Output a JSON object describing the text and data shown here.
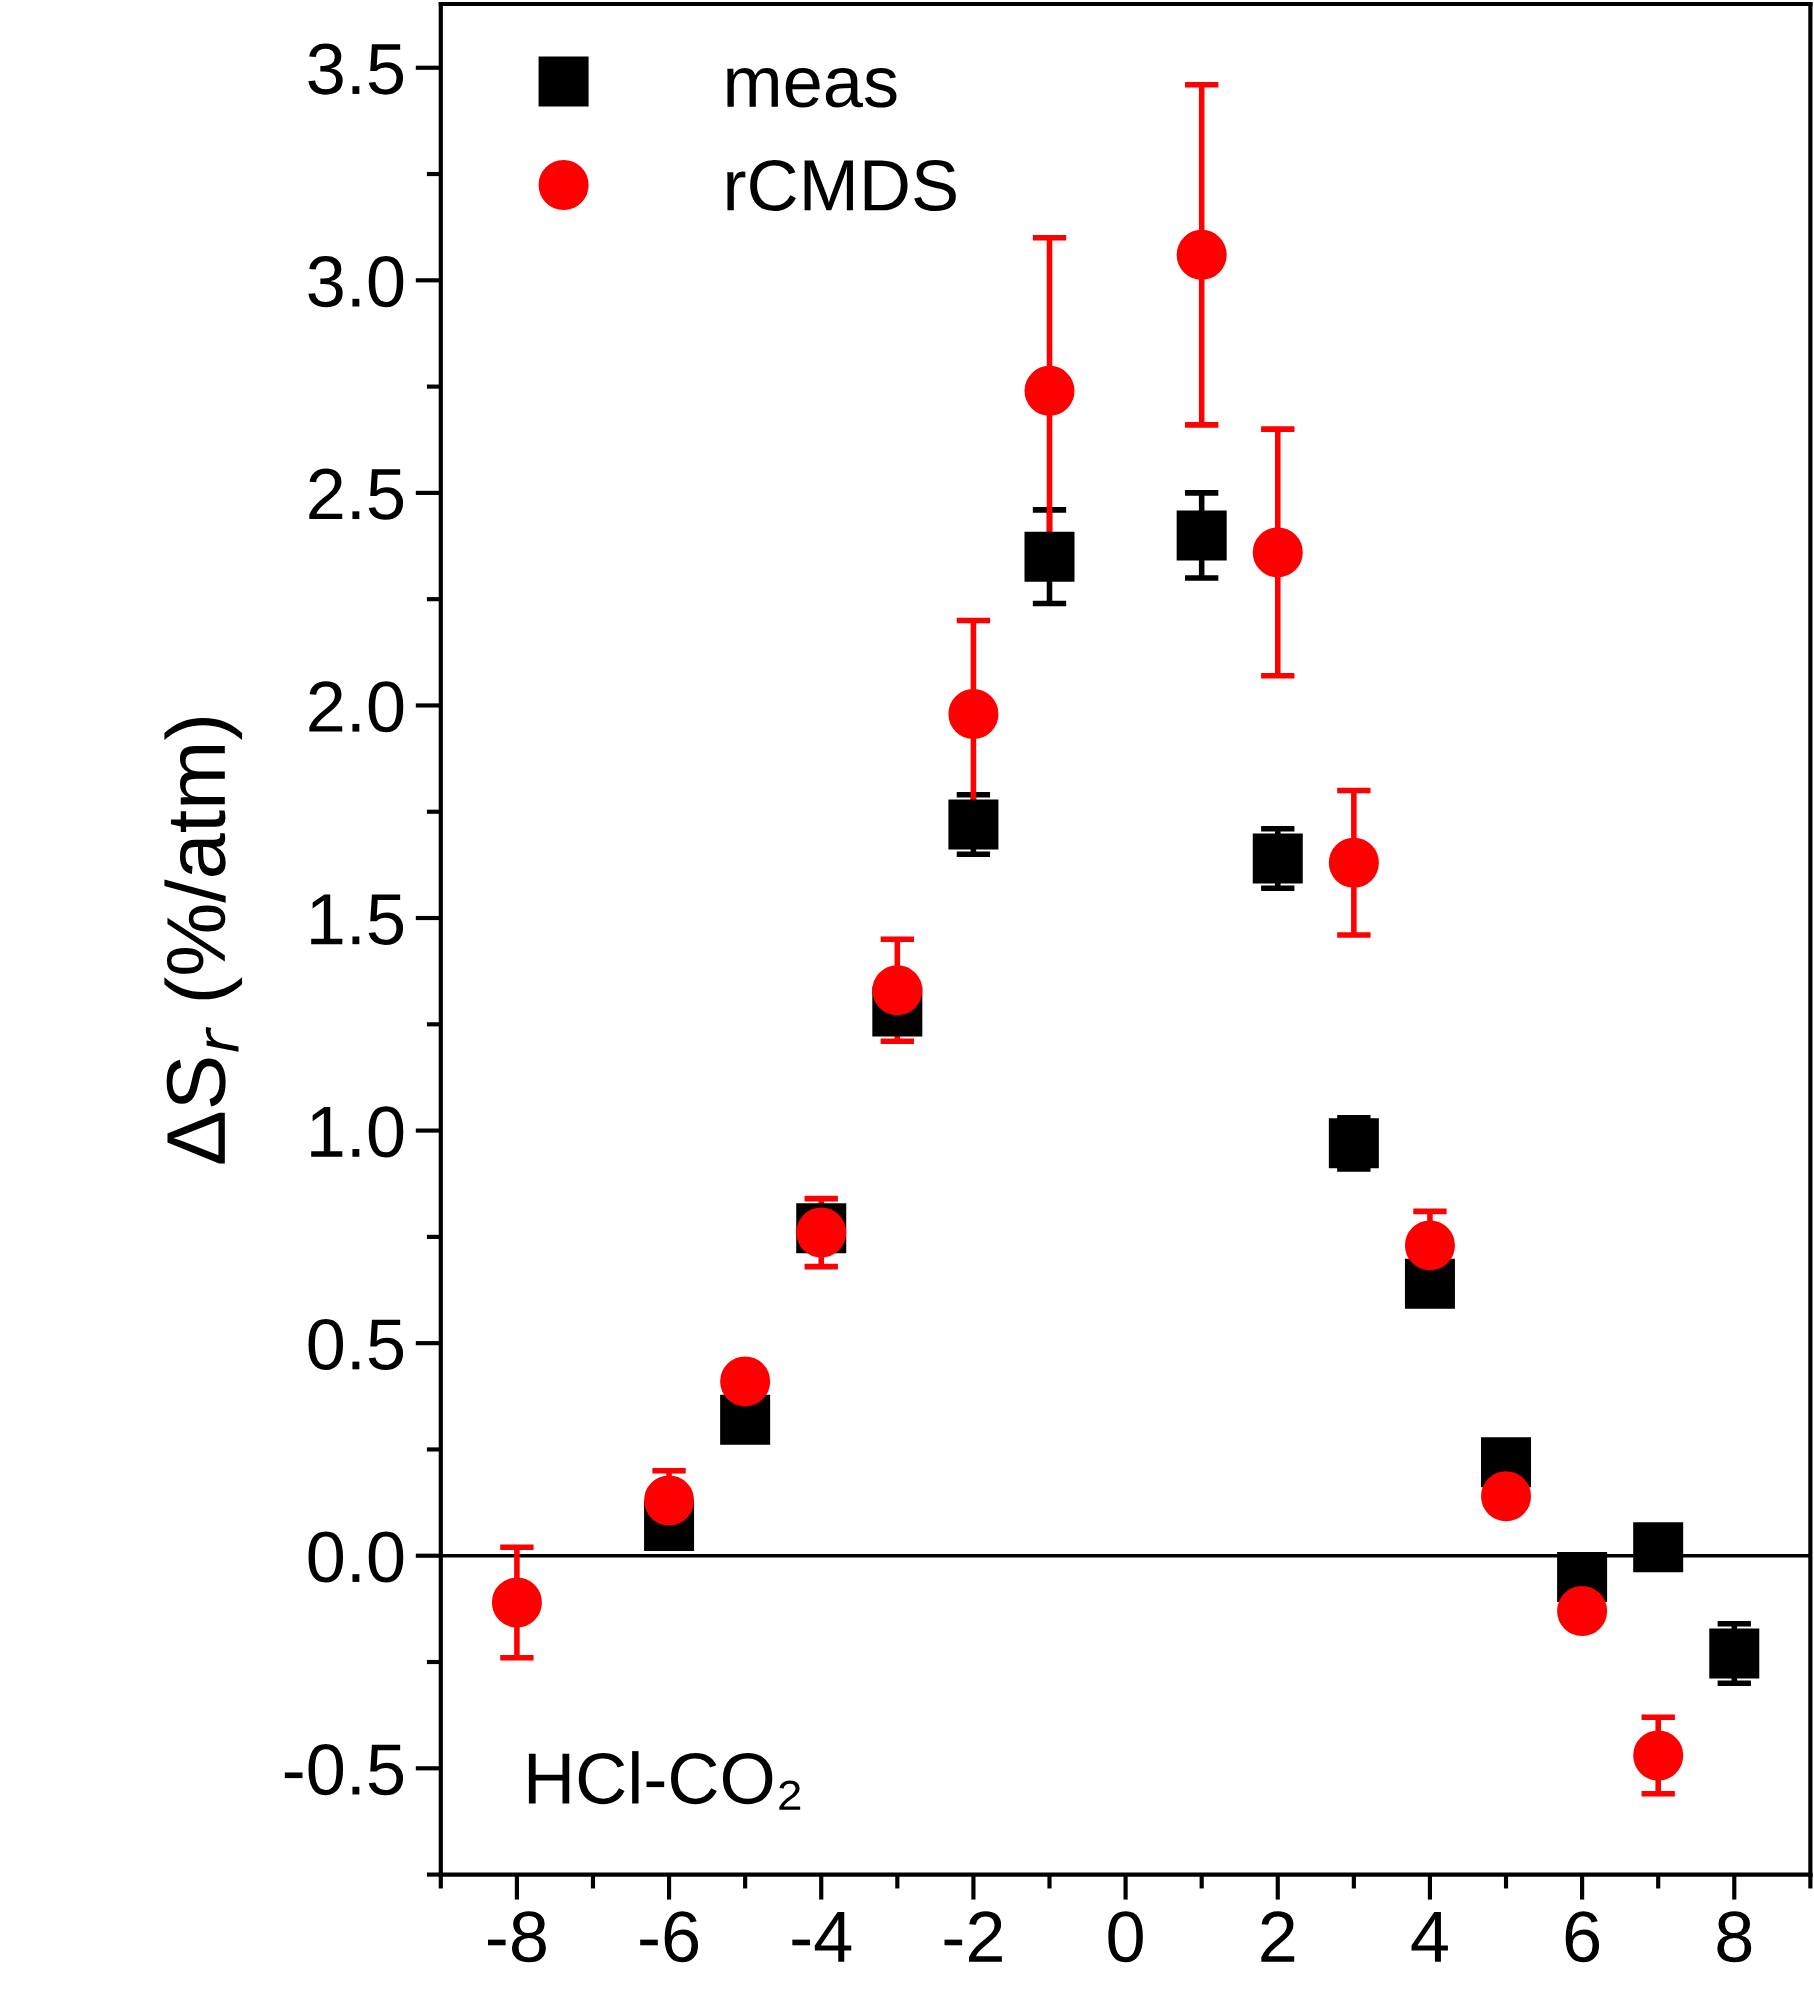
{
  "chart_data": {
    "type": "scatter",
    "ylabel": "ΔS$_{r}$ (%/atm)",
    "annotations": [
      "HCl-CO₂"
    ],
    "xlim": [
      -9,
      9
    ],
    "xticks": [
      -8,
      -6,
      -4,
      -2,
      0,
      2,
      4,
      6,
      8
    ],
    "ylim": [
      -0.75,
      3.65
    ],
    "yticks": [
      {
        "value": -0.5,
        "label": "-0.5"
      },
      {
        "value": 0,
        "label": "0.0"
      },
      0.5,
      {
        "value": 1,
        "label": "1.0"
      },
      1.5,
      {
        "value": 2,
        "label": "2.0"
      },
      2.5,
      {
        "value": 3,
        "label": "3.0"
      },
      3.5
    ],
    "ref_lines": [
      {
        "axis": "y",
        "value": 0,
        "color": "#000000"
      }
    ],
    "legend": "top left",
    "grid": false,
    "series": [
      {
        "name": "meas",
        "color": "#000000",
        "marker": "square",
        "x": [
          -6,
          -5,
          -4,
          -3,
          -2,
          -1,
          1,
          2,
          3,
          4,
          5,
          6,
          7,
          8
        ],
        "values": [
          0.07,
          0.32,
          0.77,
          1.28,
          1.72,
          2.35,
          2.4,
          1.64,
          0.97,
          0.64,
          0.22,
          -0.05,
          0.02,
          -0.23
        ],
        "errors": [
          0.05,
          0.05,
          0.05,
          0.05,
          0.07,
          0.11,
          0.1,
          0.07,
          0.06,
          0.04,
          0.04,
          0.04,
          0.05,
          0.07
        ]
      },
      {
        "name": "rCMDS",
        "color": "#ff0000",
        "marker": "circle",
        "x": [
          -8,
          -6,
          -5,
          -4,
          -3,
          -2,
          -1,
          1,
          2,
          3,
          4,
          5,
          6,
          7
        ],
        "values": [
          -0.11,
          0.13,
          0.41,
          0.76,
          1.33,
          1.98,
          2.74,
          3.06,
          2.36,
          1.63,
          0.73,
          0.14,
          -0.13,
          -0.47
        ],
        "errors": [
          0.13,
          0.07,
          null,
          0.08,
          0.12,
          0.22,
          0.36,
          0.4,
          0.29,
          0.17,
          0.08,
          0.03,
          null,
          0.09
        ]
      }
    ]
  }
}
